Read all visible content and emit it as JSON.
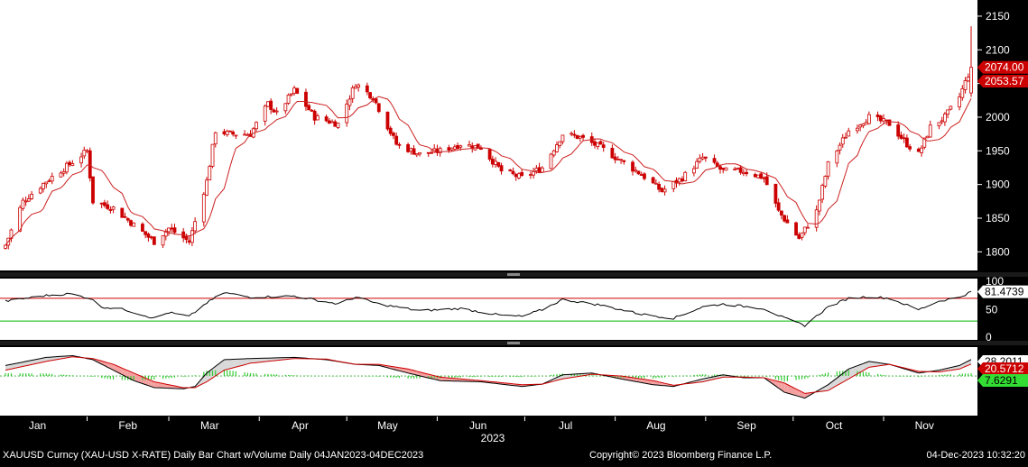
{
  "footer": {
    "left": "XAUUSD Curncy (XAU-USD X-RATE) Daily Bar Chart w/Volume  Daily 04JAN2023-04DEC2023",
    "center": "Copyright© 2023 Bloomberg Finance L.P.",
    "right": "04-Dec-2023 10:32:20"
  },
  "colors": {
    "background": "#000000",
    "panel": "#ffffff",
    "price": "#cc0000",
    "rsi_line": "#000000",
    "overbought": "#cc0000",
    "oversold": "#00bb00",
    "macd_line": "#000000",
    "signal_line": "#cc0000",
    "histogram": "#33cc33"
  },
  "chart_data": [
    {
      "type": "candlestick",
      "panel": "price",
      "months": [
        "Jan",
        "Feb",
        "Mar",
        "Apr",
        "May",
        "Jun",
        "Jul",
        "Aug",
        "Sep",
        "Oct",
        "Nov"
      ],
      "year": "2023",
      "ylim": [
        1775,
        2170
      ],
      "yticks": [
        1800,
        1850,
        1900,
        1950,
        2000,
        2050,
        2100,
        2150
      ],
      "last_price_label": "2074.00",
      "ma_label": "2053.57",
      "last_bar": {
        "open": 2036,
        "high": 2135,
        "low": 2030,
        "close": 2074
      },
      "close_path": [
        [
          "01-04",
          1810
        ],
        [
          "01-10",
          1875
        ],
        [
          "01-18",
          1905
        ],
        [
          "01-26",
          1930
        ],
        [
          "02-01",
          1950
        ],
        [
          "02-03",
          1875
        ],
        [
          "02-10",
          1865
        ],
        [
          "02-17",
          1840
        ],
        [
          "02-24",
          1815
        ],
        [
          "03-01",
          1835
        ],
        [
          "03-08",
          1815
        ],
        [
          "03-14",
          1905
        ],
        [
          "03-17",
          1980
        ],
        [
          "03-22",
          1975
        ],
        [
          "03-29",
          1975
        ],
        [
          "04-04",
          2020
        ],
        [
          "04-07",
          2005
        ],
        [
          "04-13",
          2040
        ],
        [
          "04-20",
          2000
        ],
        [
          "04-28",
          1990
        ],
        [
          "05-04",
          2050
        ],
        [
          "05-10",
          2030
        ],
        [
          "05-18",
          1960
        ],
        [
          "05-26",
          1945
        ],
        [
          "06-02",
          1950
        ],
        [
          "06-09",
          1960
        ],
        [
          "06-16",
          1955
        ],
        [
          "06-23",
          1920
        ],
        [
          "06-30",
          1910
        ],
        [
          "07-07",
          1925
        ],
        [
          "07-14",
          1975
        ],
        [
          "07-20",
          1970
        ],
        [
          "07-27",
          1955
        ],
        [
          "08-03",
          1935
        ],
        [
          "08-10",
          1915
        ],
        [
          "08-17",
          1890
        ],
        [
          "08-24",
          1910
        ],
        [
          "08-31",
          1940
        ],
        [
          "09-07",
          1920
        ],
        [
          "09-14",
          1920
        ],
        [
          "09-21",
          1910
        ],
        [
          "09-26",
          1860
        ],
        [
          "10-03",
          1820
        ],
        [
          "10-09",
          1860
        ],
        [
          "10-13",
          1930
        ],
        [
          "10-20",
          1980
        ],
        [
          "10-27",
          2000
        ],
        [
          "11-03",
          1990
        ],
        [
          "11-09",
          1960
        ],
        [
          "11-13",
          1945
        ],
        [
          "11-17",
          1985
        ],
        [
          "11-22",
          2000
        ],
        [
          "11-27",
          2030
        ],
        [
          "12-01",
          2074
        ]
      ]
    },
    {
      "type": "line",
      "panel": "rsi",
      "ylim": [
        0,
        100
      ],
      "yticks": [
        0,
        50,
        100
      ],
      "overbought": 70,
      "oversold": 30,
      "last_value_label": "81.4739",
      "series": [
        {
          "values_path": [
            [
              "01-04",
              65
            ],
            [
              "01-18",
              75
            ],
            [
              "01-26",
              78
            ],
            [
              "02-02",
              70
            ],
            [
              "02-06",
              55
            ],
            [
              "02-14",
              50
            ],
            [
              "02-24",
              35
            ],
            [
              "03-01",
              45
            ],
            [
              "03-08",
              38
            ],
            [
              "03-14",
              62
            ],
            [
              "03-20",
              80
            ],
            [
              "03-29",
              72
            ],
            [
              "04-13",
              74
            ],
            [
              "04-28",
              60
            ],
            [
              "05-04",
              72
            ],
            [
              "05-12",
              60
            ],
            [
              "05-26",
              48
            ],
            [
              "06-09",
              52
            ],
            [
              "06-23",
              40
            ],
            [
              "06-30",
              38
            ],
            [
              "07-07",
              50
            ],
            [
              "07-14",
              68
            ],
            [
              "07-27",
              58
            ],
            [
              "08-10",
              42
            ],
            [
              "08-21",
              35
            ],
            [
              "08-31",
              55
            ],
            [
              "09-07",
              60
            ],
            [
              "09-21",
              52
            ],
            [
              "09-28",
              35
            ],
            [
              "10-05",
              22
            ],
            [
              "10-13",
              55
            ],
            [
              "10-20",
              70
            ],
            [
              "10-27",
              73
            ],
            [
              "11-03",
              70
            ],
            [
              "11-13",
              50
            ],
            [
              "11-20",
              65
            ],
            [
              "11-27",
              72
            ],
            [
              "12-01",
              81.4739
            ]
          ]
        }
      ]
    },
    {
      "type": "line",
      "panel": "macd",
      "ylim": [
        -65,
        45
      ],
      "last_macd_label": "28.2011",
      "last_signal_label": "20.5712",
      "last_hist_label": "7.6291",
      "series": [
        {
          "name": "macd",
          "values_path": [
            [
              "01-04",
              18
            ],
            [
              "01-18",
              32
            ],
            [
              "01-27",
              35
            ],
            [
              "02-03",
              28
            ],
            [
              "02-10",
              10
            ],
            [
              "02-17",
              -8
            ],
            [
              "02-24",
              -20
            ],
            [
              "03-06",
              -22
            ],
            [
              "03-10",
              -18
            ],
            [
              "03-14",
              5
            ],
            [
              "03-20",
              28
            ],
            [
              "03-29",
              30
            ],
            [
              "04-13",
              32
            ],
            [
              "04-24",
              28
            ],
            [
              "05-04",
              20
            ],
            [
              "05-12",
              18
            ],
            [
              "05-22",
              5
            ],
            [
              "06-02",
              -8
            ],
            [
              "06-16",
              -10
            ],
            [
              "06-30",
              -18
            ],
            [
              "07-07",
              -14
            ],
            [
              "07-14",
              2
            ],
            [
              "07-24",
              5
            ],
            [
              "08-03",
              -5
            ],
            [
              "08-14",
              -15
            ],
            [
              "08-21",
              -18
            ],
            [
              "08-31",
              -5
            ],
            [
              "09-07",
              2
            ],
            [
              "09-14",
              -3
            ],
            [
              "09-21",
              -3
            ],
            [
              "09-28",
              -28
            ],
            [
              "10-05",
              -38
            ],
            [
              "10-13",
              -15
            ],
            [
              "10-20",
              12
            ],
            [
              "10-27",
              25
            ],
            [
              "11-03",
              20
            ],
            [
              "11-13",
              5
            ],
            [
              "11-20",
              10
            ],
            [
              "11-27",
              18
            ],
            [
              "12-01",
              28.2011
            ]
          ]
        },
        {
          "name": "signal",
          "values_path": [
            [
              "01-04",
              10
            ],
            [
              "01-18",
              25
            ],
            [
              "01-27",
              33
            ],
            [
              "02-03",
              30
            ],
            [
              "02-10",
              20
            ],
            [
              "02-17",
              5
            ],
            [
              "02-24",
              -10
            ],
            [
              "03-06",
              -20
            ],
            [
              "03-10",
              -20
            ],
            [
              "03-14",
              -10
            ],
            [
              "03-20",
              10
            ],
            [
              "03-29",
              22
            ],
            [
              "04-13",
              30
            ],
            [
              "04-24",
              29
            ],
            [
              "05-04",
              20
            ],
            [
              "05-12",
              20
            ],
            [
              "05-22",
              12
            ],
            [
              "06-02",
              -2
            ],
            [
              "06-16",
              -8
            ],
            [
              "06-30",
              -15
            ],
            [
              "07-07",
              -14
            ],
            [
              "07-14",
              -5
            ],
            [
              "07-24",
              3
            ],
            [
              "08-03",
              0
            ],
            [
              "08-14",
              -8
            ],
            [
              "08-21",
              -16
            ],
            [
              "08-31",
              -10
            ],
            [
              "09-07",
              -2
            ],
            [
              "09-14",
              -2
            ],
            [
              "09-21",
              -3
            ],
            [
              "09-28",
              -12
            ],
            [
              "10-05",
              -30
            ],
            [
              "10-13",
              -25
            ],
            [
              "10-20",
              -5
            ],
            [
              "10-27",
              15
            ],
            [
              "11-03",
              20
            ],
            [
              "11-13",
              8
            ],
            [
              "11-20",
              7
            ],
            [
              "11-27",
              12
            ],
            [
              "12-01",
              20.5712
            ]
          ]
        }
      ]
    }
  ]
}
